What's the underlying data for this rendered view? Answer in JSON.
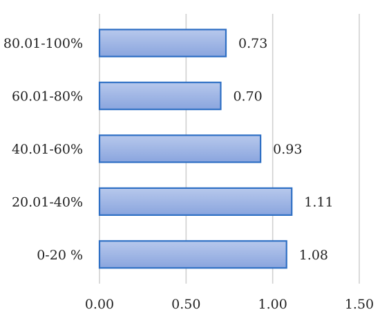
{
  "chart_data": {
    "type": "bar",
    "orientation": "horizontal",
    "categories": [
      "80.01-100%",
      "60.01-80%",
      "40.01-60%",
      "20.01-40%",
      "0-20 %"
    ],
    "values": [
      0.73,
      0.7,
      0.93,
      1.11,
      1.08
    ],
    "value_labels": [
      "0.73",
      "0.70",
      "0.93",
      "1.11",
      "1.08"
    ],
    "x_ticks": [
      "0.00",
      "0.50",
      "1.00",
      "1.50"
    ],
    "xlim": [
      0,
      1.5
    ],
    "grid": true,
    "legend": "none",
    "title": "",
    "xlabel": "",
    "ylabel": "",
    "colors": {
      "bar_fill_light": "#b7c8ec",
      "bar_fill_dark": "#8aa5de",
      "bar_stroke": "#2e6fc4",
      "grid": "#d0d0d0"
    }
  }
}
